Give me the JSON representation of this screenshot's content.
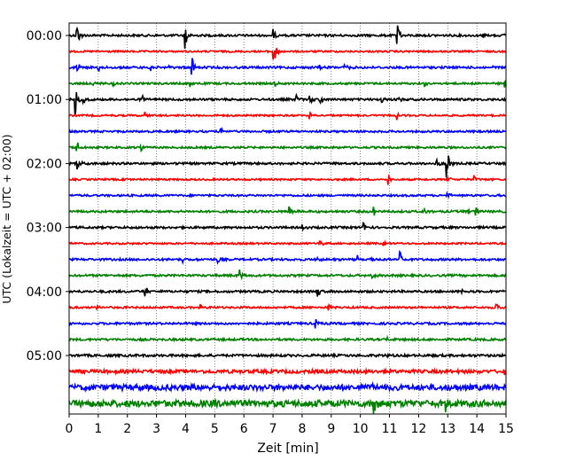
{
  "chart_data": {
    "type": "line",
    "title": "",
    "xlabel": "Zeit  [min]",
    "ylabel": "UTC (Lokalzeit = UTC + 02:00)",
    "xlim": [
      0,
      15
    ],
    "x_ticks": [
      0,
      1,
      2,
      3,
      4,
      5,
      6,
      7,
      8,
      9,
      10,
      11,
      12,
      13,
      14,
      15
    ],
    "y_tick_labels": [
      "00:00",
      "01:00",
      "02:00",
      "03:00",
      "04:00",
      "05:00"
    ],
    "y_tick_rows": [
      0,
      4,
      8,
      12,
      16,
      20
    ],
    "row_interval_minutes": 15,
    "grid": "vertical dotted at each minute",
    "trace_colors": [
      "#000000",
      "#ff0000",
      "#0000ff",
      "#008000"
    ],
    "traces": [
      {
        "row": 0,
        "start": "00:00",
        "noise": 1.0,
        "events": [
          [
            0.25,
            2.2
          ],
          [
            3.95,
            2.5
          ],
          [
            7.0,
            0.8
          ],
          [
            11.25,
            1.8
          ],
          [
            14.2,
            0.6
          ],
          [
            14.95,
            0.6
          ]
        ]
      },
      {
        "row": 1,
        "start": "00:15",
        "noise": 0.8,
        "events": [
          [
            7.0,
            3.0
          ],
          [
            7.15,
            0.7
          ]
        ]
      },
      {
        "row": 2,
        "start": "00:30",
        "noise": 1.0,
        "events": [
          [
            0.25,
            1.8
          ],
          [
            1.0,
            0.7
          ],
          [
            2.8,
            0.9
          ],
          [
            3.4,
            0.5
          ],
          [
            4.2,
            1.9
          ],
          [
            8.6,
            0.6
          ],
          [
            9.45,
            0.8
          ],
          [
            14.45,
            0.6
          ]
        ]
      },
      {
        "row": 3,
        "start": "00:45",
        "noise": 0.9,
        "events": [
          [
            0.8,
            0.5
          ],
          [
            1.5,
            0.4
          ],
          [
            4.15,
            0.6
          ],
          [
            7.05,
            0.5
          ],
          [
            12.2,
            0.4
          ],
          [
            14.95,
            0.6
          ]
        ]
      },
      {
        "row": 4,
        "start": "01:00",
        "noise": 1.0,
        "events": [
          [
            0.2,
            2.2
          ],
          [
            0.45,
            0.8
          ],
          [
            2.5,
            0.5
          ],
          [
            7.8,
            0.8
          ],
          [
            8.25,
            0.9
          ],
          [
            8.6,
            0.9
          ],
          [
            10.7,
            0.8
          ],
          [
            11.3,
            0.6
          ]
        ]
      },
      {
        "row": 5,
        "start": "01:15",
        "noise": 0.8,
        "events": [
          [
            2.6,
            0.5
          ],
          [
            8.25,
            0.6
          ],
          [
            11.25,
            0.5
          ]
        ]
      },
      {
        "row": 6,
        "start": "01:30",
        "noise": 0.9,
        "events": [
          [
            5.2,
            0.4
          ]
        ]
      },
      {
        "row": 7,
        "start": "01:45",
        "noise": 0.9,
        "events": [
          [
            0.25,
            1.6
          ],
          [
            2.45,
            0.8
          ]
        ]
      },
      {
        "row": 8,
        "start": "02:00",
        "noise": 1.0,
        "events": [
          [
            0.25,
            1.5
          ],
          [
            12.95,
            3.3
          ],
          [
            12.6,
            0.6
          ]
        ]
      },
      {
        "row": 9,
        "start": "02:15",
        "noise": 0.8,
        "events": [
          [
            1.95,
            0.4
          ],
          [
            10.95,
            0.8
          ],
          [
            13.0,
            0.6
          ],
          [
            13.9,
            0.4
          ]
        ]
      },
      {
        "row": 10,
        "start": "02:30",
        "noise": 0.9,
        "events": [
          [
            12.95,
            0.8
          ]
        ]
      },
      {
        "row": 11,
        "start": "02:45",
        "noise": 1.0,
        "events": [
          [
            7.55,
            0.7
          ],
          [
            10.45,
            0.9
          ],
          [
            12.2,
            0.5
          ],
          [
            13.55,
            0.7
          ],
          [
            13.95,
            1.2
          ]
        ]
      },
      {
        "row": 12,
        "start": "03:00",
        "noise": 1.0,
        "events": [
          [
            8.0,
            0.5
          ],
          [
            10.1,
            0.7
          ]
        ]
      },
      {
        "row": 13,
        "start": "03:15",
        "noise": 0.8,
        "events": [
          [
            8.6,
            0.5
          ],
          [
            10.75,
            0.5
          ]
        ]
      },
      {
        "row": 14,
        "start": "03:30",
        "noise": 1.0,
        "events": [
          [
            3.9,
            0.4
          ],
          [
            5.1,
            0.6
          ],
          [
            8.5,
            0.6
          ],
          [
            9.9,
            0.5
          ],
          [
            10.3,
            0.4
          ],
          [
            11.35,
            1.5
          ]
        ]
      },
      {
        "row": 15,
        "start": "03:45",
        "noise": 1.0,
        "events": [
          [
            5.85,
            0.8
          ],
          [
            10.4,
            0.5
          ]
        ]
      },
      {
        "row": 16,
        "start": "04:00",
        "noise": 1.0,
        "events": [
          [
            2.6,
            1.2
          ],
          [
            8.5,
            1.0
          ],
          [
            13.45,
            0.5
          ]
        ]
      },
      {
        "row": 17,
        "start": "04:15",
        "noise": 0.9,
        "events": [
          [
            0.95,
            0.4
          ],
          [
            4.5,
            0.4
          ],
          [
            8.9,
            0.5
          ],
          [
            14.65,
            1.2
          ]
        ]
      },
      {
        "row": 18,
        "start": "04:30",
        "noise": 1.0,
        "events": [
          [
            8.45,
            0.8
          ]
        ]
      },
      {
        "row": 19,
        "start": "04:45",
        "noise": 1.0,
        "events": [
          [
            10.9,
            0.3
          ]
        ]
      },
      {
        "row": 20,
        "start": "05:00",
        "noise": 1.1,
        "events": [
          [
            10.9,
            0.3
          ]
        ]
      },
      {
        "row": 21,
        "start": "05:15",
        "noise": 1.6,
        "events": [
          [
            10.85,
            0.6
          ],
          [
            14.9,
            0.5
          ]
        ]
      },
      {
        "row": 22,
        "start": "05:30",
        "noise": 2.6,
        "events": [
          [
            10.4,
            1.2
          ]
        ]
      },
      {
        "row": 23,
        "start": "05:45",
        "noise": 3.0,
        "events": [
          [
            5.0,
            1.0
          ],
          [
            10.45,
            2.6
          ],
          [
            12.9,
            1.0
          ]
        ]
      }
    ]
  }
}
